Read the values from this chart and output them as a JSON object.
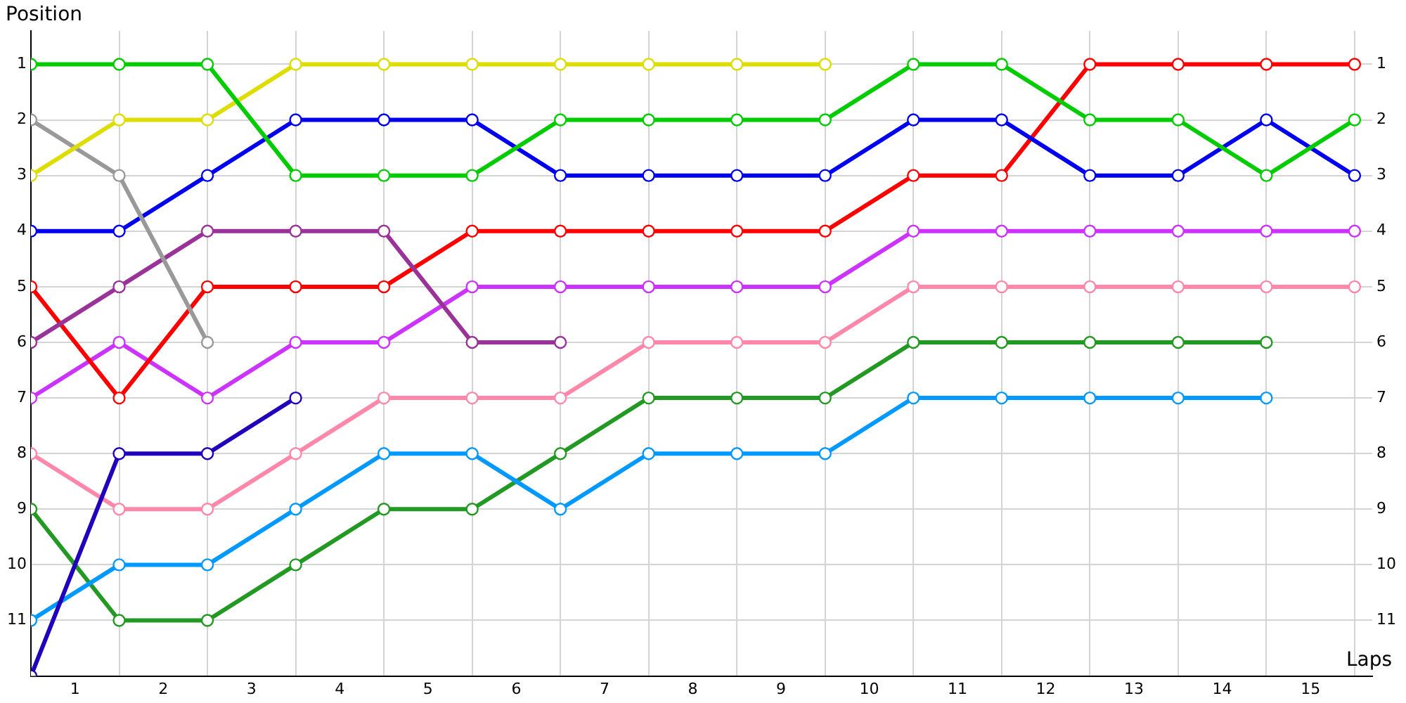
{
  "chart_data": {
    "type": "line",
    "xlabel": "Laps",
    "ylabel": "Position",
    "x": [
      0,
      1,
      2,
      3,
      4,
      5,
      6,
      7,
      8,
      9,
      10,
      11,
      12,
      13,
      14,
      15
    ],
    "xlim": [
      0,
      15.2
    ],
    "xticks": [
      {
        "value": 0,
        "label": null
      },
      {
        "value": 0.5,
        "label": "1"
      },
      {
        "value": 1,
        "label": null
      },
      {
        "value": 1.5,
        "label": "2"
      },
      {
        "value": 2,
        "label": null
      },
      {
        "value": 2.5,
        "label": "3"
      },
      {
        "value": 3,
        "label": null
      },
      {
        "value": 3.5,
        "label": "4"
      },
      {
        "value": 4,
        "label": null
      },
      {
        "value": 4.5,
        "label": "5"
      },
      {
        "value": 5,
        "label": null
      },
      {
        "value": 5.5,
        "label": "6"
      },
      {
        "value": 6,
        "label": null
      },
      {
        "value": 6.5,
        "label": "7"
      },
      {
        "value": 7,
        "label": null
      },
      {
        "value": 7.5,
        "label": "8"
      },
      {
        "value": 8,
        "label": null
      },
      {
        "value": 8.5,
        "label": "9"
      },
      {
        "value": 9,
        "label": null
      },
      {
        "value": 9.5,
        "label": "10"
      },
      {
        "value": 10,
        "label": null
      },
      {
        "value": 10.5,
        "label": "11"
      },
      {
        "value": 11,
        "label": null
      },
      {
        "value": 11.5,
        "label": "12"
      },
      {
        "value": 12,
        "label": null
      },
      {
        "value": 12.5,
        "label": "13"
      },
      {
        "value": 13,
        "label": null
      },
      {
        "value": 13.5,
        "label": "14"
      },
      {
        "value": 14,
        "label": null
      },
      {
        "value": 14.5,
        "label": "15"
      },
      {
        "value": 15,
        "label": null
      }
    ],
    "ylim": [
      12,
      0.4
    ],
    "yticks": [
      1,
      2,
      3,
      4,
      5,
      6,
      7,
      8,
      9,
      10,
      11
    ],
    "y2lim": [
      12,
      0.4
    ],
    "y2ticks": [
      1,
      2,
      3,
      4,
      5,
      6,
      7,
      8,
      9,
      10,
      11
    ],
    "grid": true,
    "legend": false,
    "marker": "circle",
    "line_style": "solid",
    "series": [
      {
        "color": "#00cc00",
        "values": [
          1,
          1,
          1,
          3,
          3,
          3,
          2,
          2,
          2,
          2,
          1,
          1,
          2,
          2,
          3,
          2
        ]
      },
      {
        "color": "#dddd00",
        "values": [
          3,
          2,
          2,
          1,
          1,
          1,
          1,
          1,
          1,
          1,
          null,
          null,
          null,
          null,
          null,
          null
        ]
      },
      {
        "color": "#999999",
        "values": [
          2,
          3,
          6,
          null,
          null,
          null,
          null,
          null,
          null,
          null,
          null,
          null,
          null,
          null,
          null,
          null
        ]
      },
      {
        "color": "#0000ee",
        "values": [
          4,
          4,
          3,
          2,
          2,
          2,
          3,
          3,
          3,
          3,
          2,
          2,
          3,
          3,
          2,
          3
        ]
      },
      {
        "color": "#993399",
        "values": [
          6,
          5,
          4,
          4,
          4,
          6,
          6,
          null,
          null,
          null,
          null,
          null,
          null,
          null,
          null,
          null
        ]
      },
      {
        "color": "#ff0000",
        "values": [
          5,
          7,
          5,
          5,
          5,
          4,
          4,
          4,
          4,
          4,
          3,
          3,
          1,
          1,
          1,
          1
        ]
      },
      {
        "color": "#cc33ff",
        "values": [
          7,
          6,
          7,
          6,
          6,
          5,
          5,
          5,
          5,
          5,
          4,
          4,
          4,
          4,
          4,
          4
        ]
      },
      {
        "color": "#2200bb",
        "values": [
          12,
          8,
          8,
          7,
          null,
          null,
          null,
          null,
          null,
          null,
          null,
          null,
          null,
          null,
          null,
          null
        ]
      },
      {
        "color": "#ff88aa",
        "values": [
          8,
          9,
          9,
          8,
          7,
          7,
          7,
          6,
          6,
          6,
          5,
          5,
          5,
          5,
          5,
          5
        ]
      },
      {
        "color": "#0099ff",
        "values": [
          11,
          10,
          10,
          9,
          8,
          8,
          9,
          8,
          8,
          8,
          7,
          7,
          7,
          7,
          7,
          null
        ]
      },
      {
        "color": "#229922",
        "values": [
          9,
          11,
          11,
          10,
          9,
          9,
          8,
          7,
          7,
          7,
          6,
          6,
          6,
          6,
          6,
          null
        ]
      }
    ]
  }
}
